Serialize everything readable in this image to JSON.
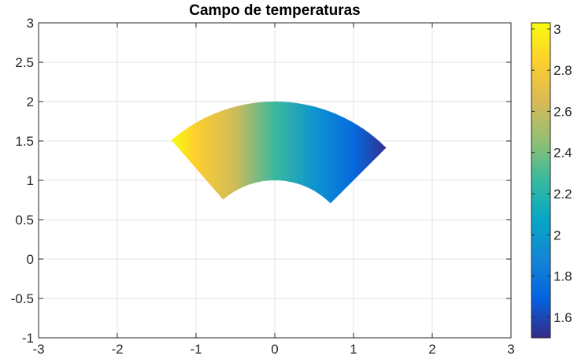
{
  "chart_data": {
    "type": "heatmap",
    "title": "Campo de temperaturas",
    "xlabel": "",
    "ylabel": "",
    "xlim": [
      -3,
      3
    ],
    "ylim": [
      -1,
      3
    ],
    "xticks": [
      -3,
      -2,
      -1,
      0,
      1,
      2,
      3
    ],
    "xtick_labels": [
      "-3",
      "-2",
      "-1",
      "0",
      "1",
      "2",
      "3"
    ],
    "yticks": [
      -1,
      -0.5,
      0,
      0.5,
      1,
      1.5,
      2,
      2.5,
      3
    ],
    "ytick_labels": [
      "-1",
      "-0.5",
      "0",
      "0.5",
      "1",
      "1.5",
      "2",
      "2.5",
      "3"
    ],
    "grid": true,
    "colormap": "parula",
    "colorbar": {
      "range": [
        1.5,
        3.03
      ],
      "ticks": [
        1.6,
        1.8,
        2,
        2.2,
        2.4,
        2.6,
        2.8,
        3
      ],
      "tick_labels": [
        "1.6",
        "1.8",
        "2",
        "2.2",
        "2.4",
        "2.6",
        "2.8",
        "3"
      ]
    },
    "domain": {
      "shape": "annular-sector",
      "r_inner": 1,
      "r_outer": 2,
      "theta_start_deg": 45,
      "theta_end_deg": 131
    },
    "field": {
      "x": [
        -1.31,
        -1.0,
        -0.5,
        0.0,
        0.5,
        1.0,
        1.41
      ],
      "temperature": [
        3.03,
        2.84,
        2.62,
        2.27,
        1.97,
        1.73,
        1.52
      ]
    }
  }
}
